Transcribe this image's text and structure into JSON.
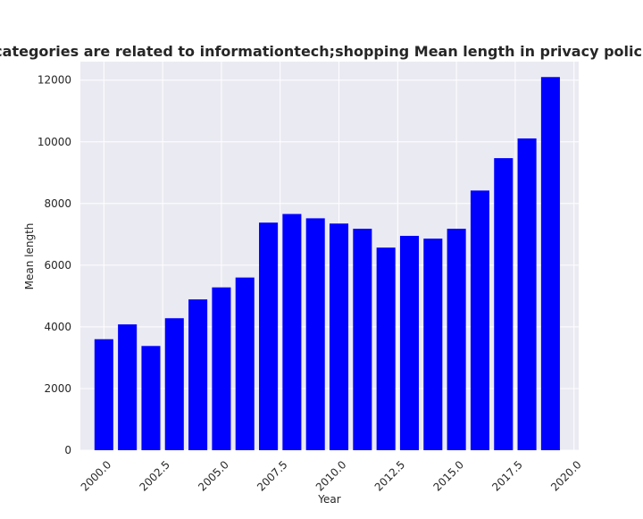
{
  "chart_data": {
    "type": "bar",
    "title": "when categories are related to informationtech;shopping Mean length in privacy policies by Ye",
    "xlabel": "Year",
    "ylabel": "Mean length",
    "x": [
      2000,
      2001,
      2002,
      2003,
      2004,
      2005,
      2006,
      2007,
      2008,
      2009,
      2010,
      2011,
      2012,
      2013,
      2014,
      2015,
      2016,
      2017,
      2018,
      2019
    ],
    "values": [
      3600,
      4080,
      3380,
      4280,
      4890,
      5280,
      5600,
      7380,
      7660,
      7520,
      7350,
      7180,
      6570,
      6950,
      6860,
      7180,
      8420,
      9470,
      10110,
      12100
    ],
    "xlim": [
      1999.0,
      2020.2
    ],
    "ylim": [
      0,
      12600
    ],
    "xticks": [
      "2000.0",
      "2002.5",
      "2005.0",
      "2007.5",
      "2010.0",
      "2012.5",
      "2015.0",
      "2017.5",
      "2020.0"
    ],
    "yticks": [
      "0",
      "2000",
      "4000",
      "6000",
      "8000",
      "10000",
      "12000"
    ],
    "bar_color": "#0000ff",
    "background_color": "#eaeaf2",
    "grid": true,
    "legend": false
  }
}
